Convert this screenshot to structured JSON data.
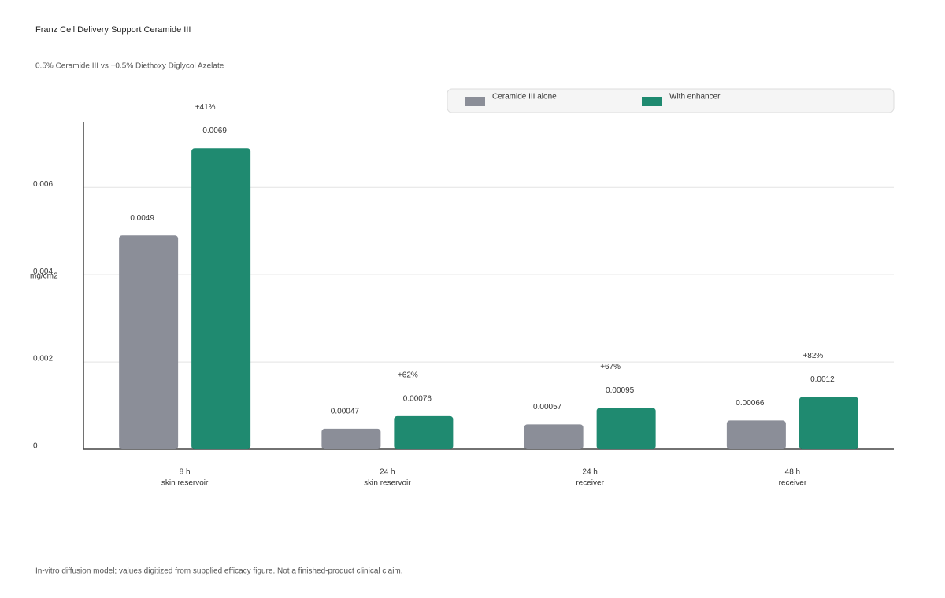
{
  "chart_data": {
    "type": "bar",
    "title": "Franz Cell Delivery Support Ceramide III",
    "subtitle": "0.5% Ceramide III vs +0.5% Diethoxy Diglycol Azelate",
    "y_label": "mg/cm2",
    "categories": [
      [
        "8 h",
        "skin reservoir"
      ],
      [
        "24 h",
        "skin reservoir"
      ],
      [
        "24 h",
        "receiver"
      ],
      [
        "48 h",
        "receiver"
      ]
    ],
    "series": [
      {
        "name": "Ceramide III alone",
        "color": "#8b8e98",
        "values": [
          0.0049,
          0.00047,
          0.00057,
          0.00066
        ]
      },
      {
        "name": "With enhancer",
        "color": "#1f8a70",
        "values": [
          0.0069,
          0.00076,
          0.00095,
          0.0012
        ]
      }
    ],
    "annotations": [
      "+41%",
      "+62%",
      "+67%",
      "+82%"
    ],
    "ylim": [
      0,
      0.0075
    ],
    "yticks": [
      0,
      0.002,
      0.004,
      0.006
    ],
    "grid": true,
    "legend": "top-right",
    "footnote": "In-vitro diffusion model; values digitized from supplied efficacy figure. Not a finished-product clinical claim."
  }
}
